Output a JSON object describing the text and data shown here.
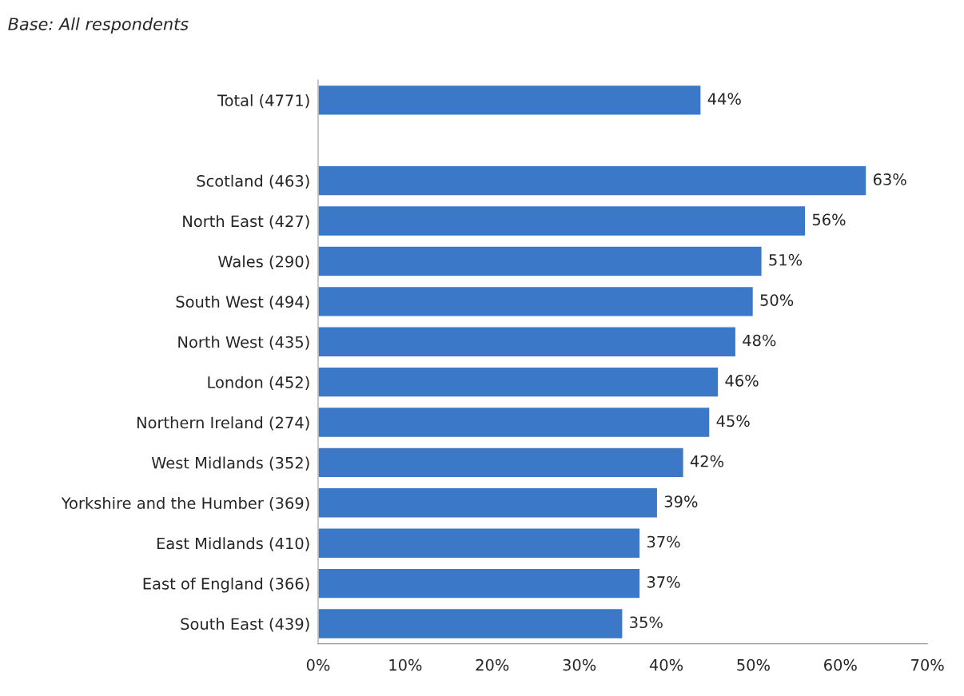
{
  "chart_data": {
    "type": "bar",
    "orientation": "horizontal",
    "subtitle": "Base: All respondents",
    "categories": [
      "Total (4771)",
      null,
      "Scotland (463)",
      "North East (427)",
      "Wales (290)",
      "South West (494)",
      "North West (435)",
      "London (452)",
      "Northern Ireland (274)",
      "West Midlands (352)",
      "Yorkshire and the Humber (369)",
      "East Midlands (410)",
      "East of England (366)",
      "South East (439)"
    ],
    "values": [
      44,
      null,
      63,
      56,
      51,
      50,
      48,
      46,
      45,
      42,
      39,
      37,
      37,
      35
    ],
    "value_labels": [
      "44%",
      null,
      "63%",
      "56%",
      "51%",
      "50%",
      "48%",
      "46%",
      "45%",
      "42%",
      "39%",
      "37%",
      "37%",
      "35%"
    ],
    "color": "#3b78c8",
    "xlim": [
      0,
      70
    ],
    "xticks": [
      {
        "value": 0,
        "label": "0%"
      },
      {
        "value": 10,
        "label": "10%"
      },
      {
        "value": 20,
        "label": "20%"
      },
      {
        "value": 30,
        "label": "30%"
      },
      {
        "value": 40,
        "label": "40%"
      },
      {
        "value": 50,
        "label": "50%"
      },
      {
        "value": 60,
        "label": "60%"
      },
      {
        "value": 70,
        "label": "70%"
      }
    ],
    "grid": false
  }
}
